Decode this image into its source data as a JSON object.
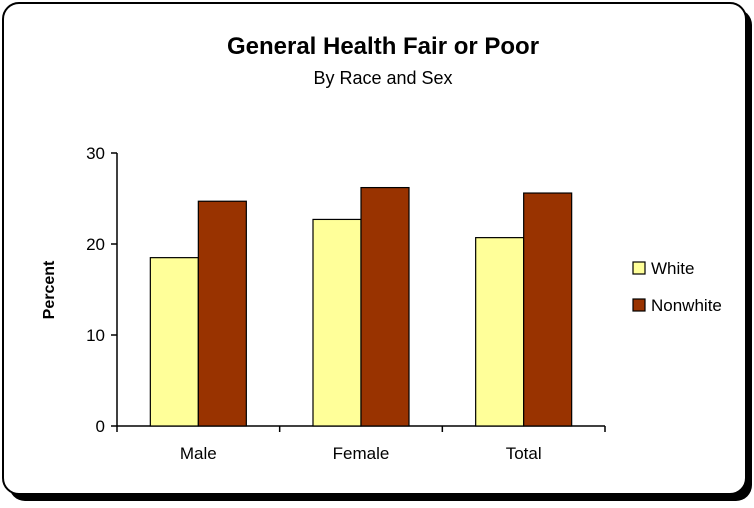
{
  "chart_data": {
    "type": "bar",
    "title": "General Health Fair or Poor",
    "subtitle": "By Race and Sex",
    "ylabel": "Percent",
    "xlabel": "",
    "categories": [
      "Male",
      "Female",
      "Total"
    ],
    "series": [
      {
        "name": "White",
        "values": [
          18.5,
          22.7,
          20.7
        ],
        "color": "#ffff99"
      },
      {
        "name": "Nonwhite",
        "values": [
          24.7,
          26.2,
          25.6
        ],
        "color": "#993300"
      }
    ],
    "ylim": [
      0,
      30
    ],
    "yticks": [
      "0",
      "10",
      "20",
      "30"
    ],
    "grid": false,
    "legend": "right"
  }
}
